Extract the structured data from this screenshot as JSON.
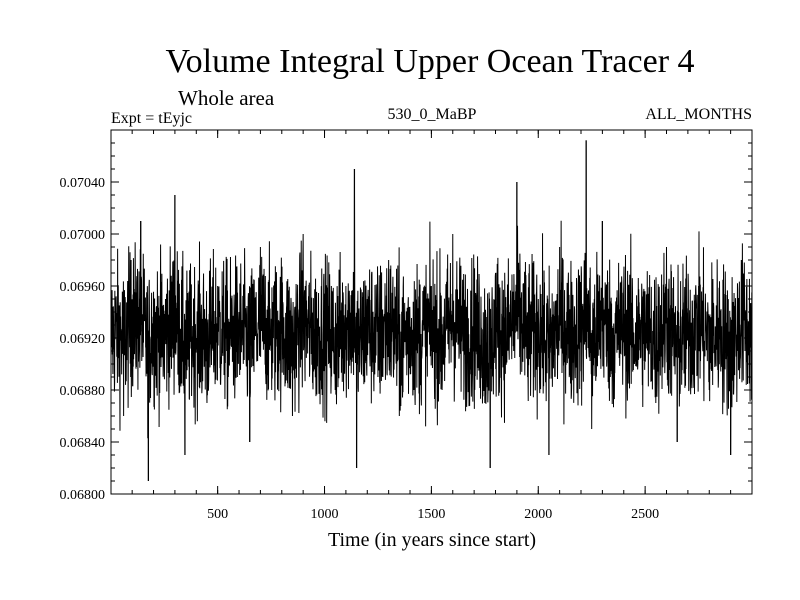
{
  "chart_data": {
    "type": "line",
    "title": "Volume Integral Upper Ocean Tracer 4",
    "subtitle": "Whole area",
    "experiment": "Expt = tEyjc",
    "period": "530_0_MaBP",
    "months": "ALL_MONTHS",
    "xlabel": "Time (in years since start)",
    "ylabel": "",
    "xlim": [
      1,
      3000
    ],
    "ylim": [
      0.068,
      0.0708
    ],
    "xticks": [
      500,
      1000,
      1500,
      2000,
      2500
    ],
    "xtick_labels": [
      "500",
      "1000",
      "1500",
      "2000",
      "2500"
    ],
    "yticks": [
      0.068,
      0.0684,
      0.0688,
      0.0692,
      0.0696,
      0.07,
      0.0704
    ],
    "ytick_labels": [
      "0.06800",
      "0.06840",
      "0.06880",
      "0.06920",
      "0.06960",
      "0.07000",
      "0.07040"
    ],
    "grid": false,
    "series": [
      {
        "name": "Volume Integral Upper Ocean Tracer 4",
        "color": "#000000",
        "summary": {
          "mean": 0.06925,
          "approx_min": 0.06811,
          "approx_max": 0.07072,
          "n_points": 3000
        },
        "x": [
          1,
          30,
          60,
          95,
          140,
          176,
          190,
          250,
          300,
          347,
          400,
          450,
          500,
          550,
          600,
          650,
          700,
          750,
          800,
          850,
          900,
          950,
          1000,
          1050,
          1100,
          1140,
          1150,
          1200,
          1250,
          1300,
          1350,
          1400,
          1450,
          1500,
          1550,
          1600,
          1650,
          1700,
          1750,
          1775,
          1800,
          1850,
          1900,
          1950,
          2000,
          2050,
          2100,
          2150,
          2200,
          2224,
          2250,
          2300,
          2350,
          2400,
          2450,
          2500,
          2550,
          2600,
          2650,
          2700,
          2750,
          2800,
          2850,
          2900,
          2950,
          3000
        ],
        "values": [
          0.069,
          0.0693,
          0.0686,
          0.0698,
          0.0701,
          0.0681,
          0.0694,
          0.069,
          0.0703,
          0.0683,
          0.0692,
          0.0687,
          0.0696,
          0.0689,
          0.0694,
          0.0684,
          0.0699,
          0.0691,
          0.0695,
          0.0686,
          0.07,
          0.069,
          0.0693,
          0.0688,
          0.0696,
          0.0705,
          0.0682,
          0.0695,
          0.0689,
          0.0698,
          0.0686,
          0.0693,
          0.069,
          0.0696,
          0.0688,
          0.07,
          0.0691,
          0.0694,
          0.0687,
          0.0682,
          0.0697,
          0.069,
          0.0704,
          0.0689,
          0.0695,
          0.0683,
          0.0699,
          0.0691,
          0.0693,
          0.07072,
          0.0685,
          0.0701,
          0.0689,
          0.0696,
          0.069,
          0.0694,
          0.0687,
          0.0699,
          0.0684,
          0.0692,
          0.0696,
          0.0688,
          0.0693,
          0.0683,
          0.0698,
          0.0691
        ]
      }
    ]
  }
}
